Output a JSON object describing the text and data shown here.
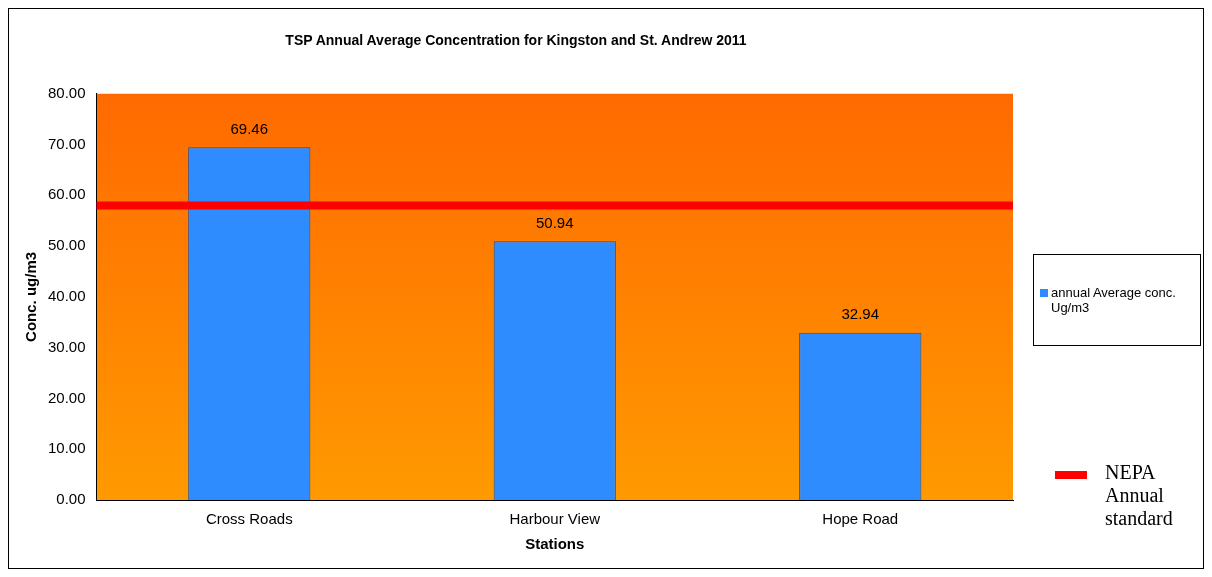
{
  "chart_data": {
    "type": "bar",
    "title": "TSP Annual Average Concentration for Kingston and St. Andrew 2011",
    "xlabel": "Stations",
    "ylabel": "Conc. ug/m3",
    "categories": [
      "Cross Roads",
      "Harbour View",
      "Hope Road"
    ],
    "series": [
      {
        "name": "annual Average conc. Ug/m3",
        "color": "#2f8cff",
        "values": [
          69.46,
          50.94,
          32.94
        ]
      }
    ],
    "ylim": [
      0,
      80
    ],
    "yticks": [
      {
        "value": 0,
        "label": "0.00"
      },
      {
        "value": 10,
        "label": "10.00"
      },
      {
        "value": 20,
        "label": "20.00"
      },
      {
        "value": 30,
        "label": "30.00"
      },
      {
        "value": 40,
        "label": "40.00"
      },
      {
        "value": 50,
        "label": "50.00"
      },
      {
        "value": 60,
        "label": "60.00"
      },
      {
        "value": 70,
        "label": "70.00"
      },
      {
        "value": 80,
        "label": "80.00"
      }
    ],
    "ref_lines": [
      {
        "axis": "y",
        "value": 58,
        "label": "NEPA Annual standard",
        "color": "#ff0000"
      }
    ],
    "data_labels": true,
    "legend": "right",
    "grid": false
  }
}
